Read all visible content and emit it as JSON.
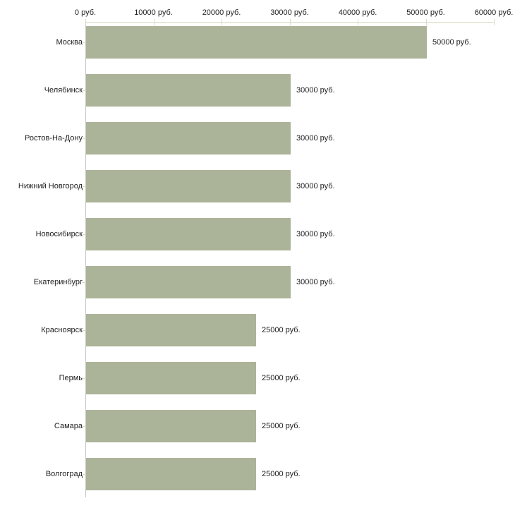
{
  "chart_data": {
    "type": "bar",
    "orientation": "horizontal",
    "title": "",
    "xlabel": "",
    "ylabel": "",
    "categories": [
      "Москва",
      "Челябинск",
      "Ростов-На-Дону",
      "Нижний Новгород",
      "Новосибирск",
      "Екатеринбург",
      "Красноярск",
      "Пермь",
      "Самара",
      "Волгоград"
    ],
    "values": [
      50000,
      30000,
      30000,
      30000,
      30000,
      30000,
      25000,
      25000,
      25000,
      25000
    ],
    "value_labels": [
      "50000 руб.",
      "30000 руб.",
      "30000 руб.",
      "30000 руб.",
      "30000 руб.",
      "30000 руб.",
      "25000 руб.",
      "25000 руб.",
      "25000 руб.",
      "25000 руб."
    ],
    "unit": "руб.",
    "xlim": [
      0,
      60000
    ],
    "x_ticks": [
      0,
      10000,
      20000,
      30000,
      40000,
      50000,
      60000
    ],
    "x_tick_labels": [
      "0 руб.",
      "10000 руб.",
      "20000 руб.",
      "30000 руб.",
      "40000 руб.",
      "50000 руб.",
      "60000 руб."
    ],
    "axis_position": "top",
    "grid": false,
    "legend": null,
    "colors": {
      "bar": "#abb399",
      "x_axis": "#d8dcc0",
      "x_tick": "#d8dcc0",
      "y_axis": "#c6c6c6",
      "y_tick": "#d8dcc0",
      "text": "#222222",
      "background": "#ffffff"
    }
  }
}
